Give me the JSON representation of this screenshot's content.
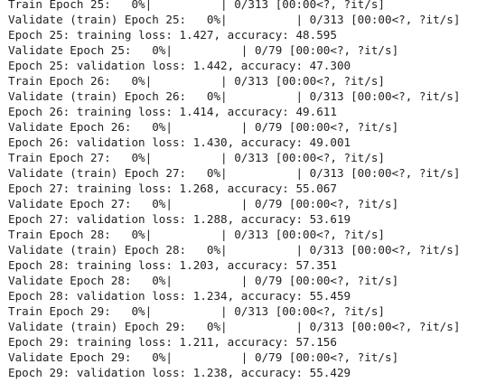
{
  "terminal": {
    "lines": [
      "Train Epoch 25:   0%|          | 0/313 [00:00<?, ?it/s]",
      "Validate (train) Epoch 25:   0%|          | 0/313 [00:00<?, ?it/s]",
      "Epoch 25: training loss: 1.427, accuracy: 48.595",
      "Validate Epoch 25:   0%|          | 0/79 [00:00<?, ?it/s]",
      "Epoch 25: validation loss: 1.442, accuracy: 47.300",
      "Train Epoch 26:   0%|          | 0/313 [00:00<?, ?it/s]",
      "Validate (train) Epoch 26:   0%|          | 0/313 [00:00<?, ?it/s]",
      "Epoch 26: training loss: 1.414, accuracy: 49.611",
      "Validate Epoch 26:   0%|          | 0/79 [00:00<?, ?it/s]",
      "Epoch 26: validation loss: 1.430, accuracy: 49.001",
      "Train Epoch 27:   0%|          | 0/313 [00:00<?, ?it/s]",
      "Validate (train) Epoch 27:   0%|          | 0/313 [00:00<?, ?it/s]",
      "Epoch 27: training loss: 1.268, accuracy: 55.067",
      "Validate Epoch 27:   0%|          | 0/79 [00:00<?, ?it/s]",
      "Epoch 27: validation loss: 1.288, accuracy: 53.619",
      "Train Epoch 28:   0%|          | 0/313 [00:00<?, ?it/s]",
      "Validate (train) Epoch 28:   0%|          | 0/313 [00:00<?, ?it/s]",
      "Epoch 28: training loss: 1.203, accuracy: 57.351",
      "Validate Epoch 28:   0%|          | 0/79 [00:00<?, ?it/s]",
      "Epoch 28: validation loss: 1.234, accuracy: 55.459",
      "Train Epoch 29:   0%|          | 0/313 [00:00<?, ?it/s]",
      "Validate (train) Epoch 29:   0%|          | 0/313 [00:00<?, ?it/s]",
      "Epoch 29: training loss: 1.211, accuracy: 57.156",
      "Validate Epoch 29:   0%|          | 0/79 [00:00<?, ?it/s]",
      "Epoch 29: validation loss: 1.238, accuracy: 55.429"
    ]
  }
}
